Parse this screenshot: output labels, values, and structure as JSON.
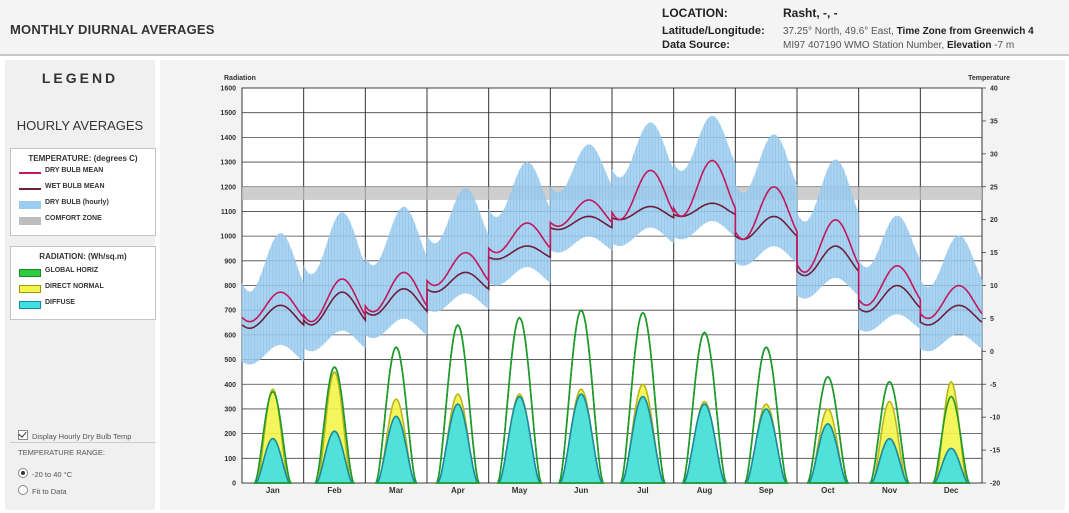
{
  "header": {
    "title": "MONTHLY DIURNAL AVERAGES",
    "location_label": "LOCATION:",
    "location_value": "Rasht, -, -",
    "latlon_label": "Latitude/Longitude:",
    "latlon_value": "37.25° North, 49.6° East,",
    "timezone_label": "Time Zone from Greenwich",
    "timezone_value": "4",
    "source_label": "Data Source:",
    "source_value": "MI97    407190 WMO Station Number,",
    "elevation_label": "Elevation",
    "elevation_value": "-7 m"
  },
  "sidebar": {
    "legend_title": "LEGEND",
    "hourly_title": "HOURLY AVERAGES",
    "temperature_box": {
      "heading": "TEMPERATURE: (degrees C)",
      "items": [
        {
          "label": "DRY BULB MEAN",
          "color": "#c2185b",
          "icon": "line-swatch"
        },
        {
          "label": "WET BULB MEAN",
          "color": "#6d1f3b",
          "icon": "line-swatch"
        },
        {
          "label": "DRY BULB (hourly)",
          "color": "#9ccdf0",
          "icon": "band-swatch"
        },
        {
          "label": "COMFORT ZONE",
          "color": "#bdbdbd",
          "icon": "band-swatch"
        }
      ]
    },
    "radiation_box": {
      "heading": "RADIATION: (Wh/sq.m)",
      "items": [
        {
          "label": "GLOBAL HORIZ",
          "color": "#2ecc40",
          "icon": "fill-swatch"
        },
        {
          "label": "DIRECT NORMAL",
          "color": "#f4f44a",
          "icon": "fill-swatch"
        },
        {
          "label": "DIFFUSE",
          "color": "#3ee0e6",
          "icon": "fill-swatch"
        }
      ]
    },
    "controls": {
      "display_hourly_label": "Display Hourly Dry Bulb Temp",
      "display_hourly_checked": true,
      "range_label": "TEMPERATURE RANGE:",
      "range_options": [
        "-20 to 40 °C",
        "Fit to Data"
      ],
      "range_selected": "-20 to 40 °C"
    }
  },
  "chart_data": {
    "type": "area",
    "left_axis_label": "Radiation",
    "right_axis_label": "Temperature",
    "left_ylim": [
      0,
      1600
    ],
    "left_ticks": [
      0,
      100,
      200,
      300,
      400,
      500,
      600,
      700,
      800,
      900,
      1000,
      1100,
      1200,
      1300,
      1400,
      1500,
      1600
    ],
    "right_ylim": [
      -20,
      40
    ],
    "right_ticks": [
      -20,
      -15,
      -10,
      -5,
      0,
      5,
      10,
      15,
      20,
      25,
      30,
      35,
      40
    ],
    "categories": [
      "Jan",
      "Feb",
      "Mar",
      "Apr",
      "May",
      "Jun",
      "Jul",
      "Aug",
      "Sep",
      "Oct",
      "Nov",
      "Dec"
    ],
    "grid": true,
    "comfort_zone_c": [
      23,
      25
    ],
    "series": [
      {
        "name": "GLOBAL HORIZ",
        "unit": "Wh/sq.m",
        "peak_by_month": [
          370,
          470,
          550,
          640,
          670,
          700,
          690,
          610,
          550,
          430,
          410,
          350
        ]
      },
      {
        "name": "DIRECT NORMAL",
        "unit": "Wh/sq.m",
        "peak_by_month": [
          380,
          450,
          340,
          360,
          360,
          380,
          400,
          330,
          320,
          300,
          330,
          410
        ]
      },
      {
        "name": "DIFFUSE",
        "unit": "Wh/sq.m",
        "peak_by_month": [
          180,
          210,
          270,
          320,
          350,
          360,
          350,
          320,
          300,
          240,
          180,
          140
        ]
      },
      {
        "name": "DRY BULB MEAN",
        "unit": "°C",
        "min_by_month": [
          4.5,
          4.5,
          6,
          10,
          15,
          19,
          20,
          20.5,
          17,
          12,
          7,
          5
        ],
        "max_by_month": [
          9,
          11,
          12,
          15,
          19.5,
          23,
          27.5,
          29,
          25,
          20,
          13,
          10
        ]
      },
      {
        "name": "WET BULB MEAN",
        "unit": "°C",
        "min_by_month": [
          3.5,
          4,
          5.5,
          9,
          14,
          18.5,
          20,
          20.5,
          17,
          11.5,
          6,
          4
        ],
        "max_by_month": [
          7,
          9,
          9.5,
          12,
          16,
          20.5,
          22,
          22.5,
          20.5,
          16,
          10,
          7
        ]
      },
      {
        "name": "DRY BULB (hourly)",
        "unit": "°C",
        "low_by_month": [
          -2,
          0,
          2,
          6,
          10,
          15,
          16,
          17,
          13,
          8,
          3,
          0
        ],
        "high_by_month": [
          15,
          18,
          19,
          22,
          26,
          29,
          32,
          33,
          30,
          26,
          18,
          15
        ]
      }
    ]
  }
}
